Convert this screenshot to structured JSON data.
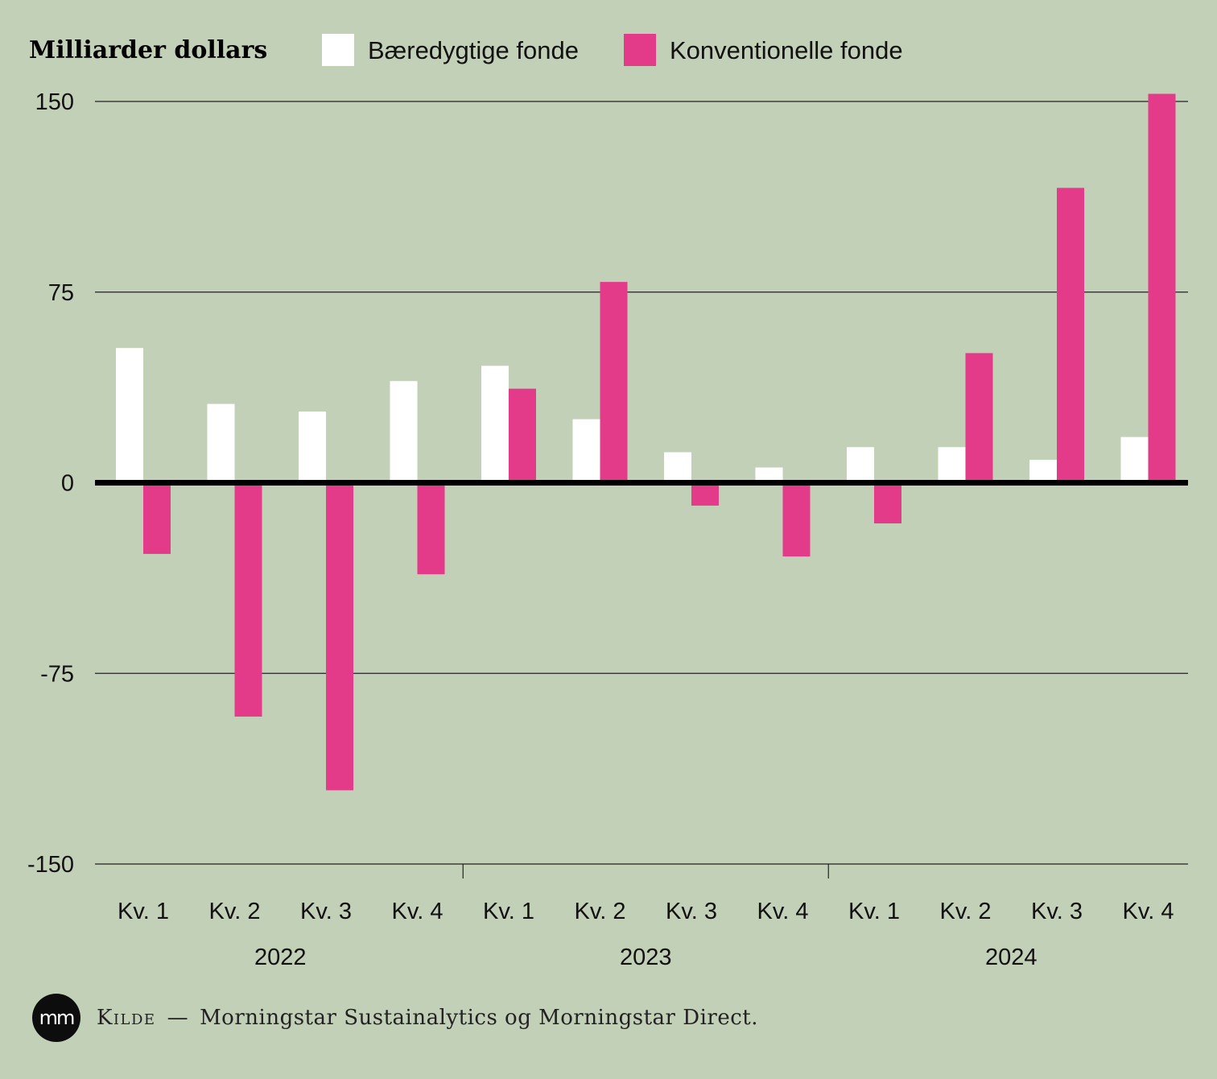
{
  "footer": {
    "logo_text": "mm",
    "source_label": "Kilde",
    "source_dash": "—",
    "source_text": "Morningstar Sustainalytics og Morningstar Direct."
  },
  "colors": {
    "background": "#c3d0b8",
    "sustainable": "#ffffff",
    "conventional": "#e33a8a",
    "zero_line": "#000000",
    "grid": "#222222"
  },
  "chart_data": {
    "type": "bar",
    "ylabel": "Milliarder dollars",
    "ylim": [
      -150,
      150
    ],
    "yticks": [
      150,
      75,
      0,
      -75,
      -150
    ],
    "ytick_labels": [
      "150",
      "75",
      "0",
      "-75",
      "-150"
    ],
    "grid": true,
    "legend_position": "top",
    "categories": [
      "Kv. 1",
      "Kv. 2",
      "Kv. 3",
      "Kv. 4",
      "Kv. 1",
      "Kv. 2",
      "Kv. 3",
      "Kv. 4",
      "Kv. 1",
      "Kv. 2",
      "Kv. 3",
      "Kv. 4"
    ],
    "year_groups": [
      {
        "label": "2022",
        "count": 4
      },
      {
        "label": "2023",
        "count": 4
      },
      {
        "label": "2024",
        "count": 4
      }
    ],
    "series": [
      {
        "name": "Bæredygtige fonde",
        "color": "#ffffff",
        "values": [
          53,
          31,
          28,
          40,
          46,
          25,
          12,
          6,
          14,
          14,
          9,
          18
        ]
      },
      {
        "name": "Konventionelle fonde",
        "color": "#e33a8a",
        "values": [
          -28,
          -92,
          -121,
          -36,
          37,
          79,
          -9,
          -29,
          -16,
          51,
          116,
          153
        ]
      }
    ]
  }
}
